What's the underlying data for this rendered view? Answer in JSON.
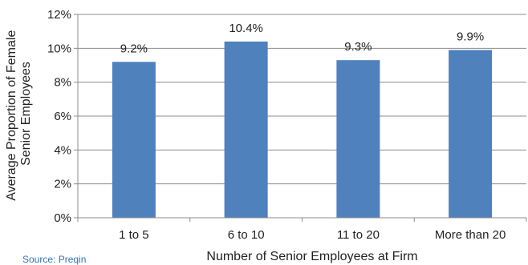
{
  "chart_data": {
    "type": "bar",
    "categories": [
      "1 to 5",
      "6 to 10",
      "11 to 20",
      "More than 20"
    ],
    "values": [
      9.2,
      10.4,
      9.3,
      9.9
    ],
    "data_labels": [
      "9.2%",
      "10.4%",
      "9.3%",
      "9.9%"
    ],
    "xlabel": "Number of Senior Employees at Firm",
    "ylabel_lines": [
      "Average Proportion of Female",
      "Senior Employees"
    ],
    "ylim": [
      0,
      12
    ],
    "yticks": [
      0,
      2,
      4,
      6,
      8,
      10,
      12
    ],
    "ytick_labels": [
      "0%",
      "2%",
      "4%",
      "6%",
      "8%",
      "10%",
      "12%"
    ],
    "grid": true,
    "bar_color": "#4f81bd",
    "legend": "none"
  },
  "source": "Source: Preqin"
}
